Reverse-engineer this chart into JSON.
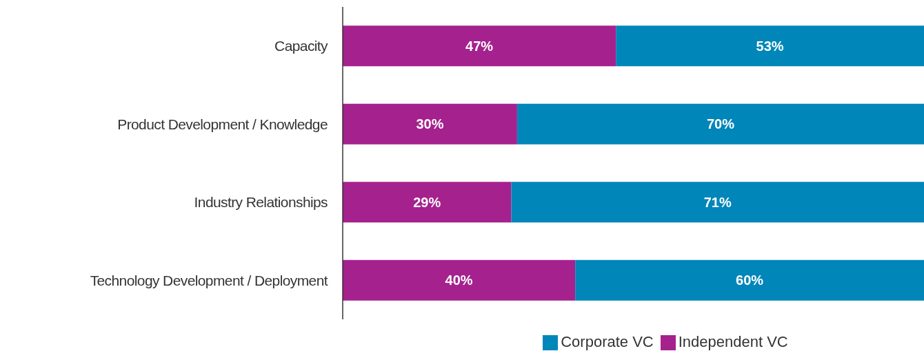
{
  "chart_data": {
    "type": "bar",
    "orientation": "horizontal",
    "stacked": true,
    "categories": [
      "Capacity",
      "Product Development / Knowledge",
      "Industry Relationships",
      "Technology Development / Deployment"
    ],
    "series": [
      {
        "name": "Independent VC",
        "color": "#a5218e",
        "values": [
          47,
          30,
          29,
          40
        ],
        "value_labels": [
          "47%",
          "30%",
          "29%",
          "40%"
        ]
      },
      {
        "name": "Corporate VC",
        "color": "#0086b8",
        "values": [
          53,
          70,
          71,
          60
        ],
        "value_labels": [
          "53%",
          "70%",
          "71%",
          "60%"
        ]
      }
    ],
    "xlim": [
      0,
      100
    ],
    "tick_labels": "y",
    "grid": false,
    "legend": "bottom"
  }
}
